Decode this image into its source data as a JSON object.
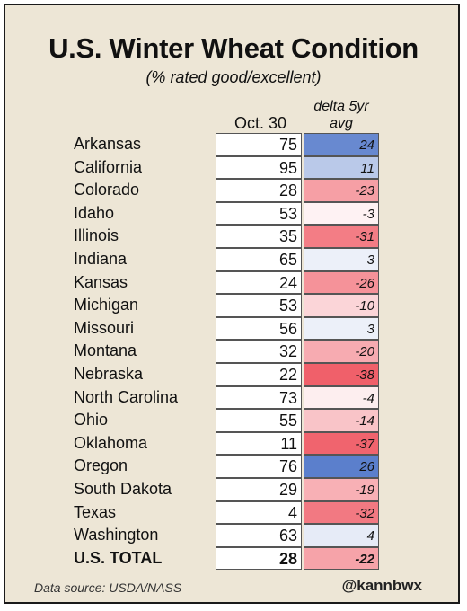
{
  "header": {
    "title": "U.S. Winter Wheat Condition",
    "subtitle": "(% rated good/excellent)",
    "col_date": "Oct. 30",
    "col_delta_line1": "delta 5yr",
    "col_delta_line2": "avg"
  },
  "chart_data": {
    "type": "table",
    "title": "U.S. Winter Wheat Condition",
    "subtitle": "(% rated good/excellent)",
    "columns": [
      "Oct. 30",
      "delta 5yr avg"
    ],
    "rows": [
      {
        "state": "Arkansas",
        "value": "75",
        "delta": "24"
      },
      {
        "state": "California",
        "value": "95",
        "delta": "11"
      },
      {
        "state": "Colorado",
        "value": "28",
        "delta": "-23"
      },
      {
        "state": "Idaho",
        "value": "53",
        "delta": "-3"
      },
      {
        "state": "Illinois",
        "value": "35",
        "delta": "-31"
      },
      {
        "state": "Indiana",
        "value": "65",
        "delta": "3"
      },
      {
        "state": "Kansas",
        "value": "24",
        "delta": "-26"
      },
      {
        "state": "Michigan",
        "value": "53",
        "delta": "-10"
      },
      {
        "state": "Missouri",
        "value": "56",
        "delta": "3"
      },
      {
        "state": "Montana",
        "value": "32",
        "delta": "-20"
      },
      {
        "state": "Nebraska",
        "value": "22",
        "delta": "-38"
      },
      {
        "state": "North Carolina",
        "value": "73",
        "delta": "-4"
      },
      {
        "state": "Ohio",
        "value": "55",
        "delta": "-14"
      },
      {
        "state": "Oklahoma",
        "value": "11",
        "delta": "-37"
      },
      {
        "state": "Oregon",
        "value": "76",
        "delta": "26"
      },
      {
        "state": "South Dakota",
        "value": "29",
        "delta": "-19"
      },
      {
        "state": "Texas",
        "value": "4",
        "delta": "-32"
      },
      {
        "state": "Washington",
        "value": "63",
        "delta": "4"
      }
    ],
    "total": {
      "state": "U.S. TOTAL",
      "value": "28",
      "delta": "-22"
    },
    "colors": {
      "positive": "#5b7fcc",
      "negative": "#f0606a",
      "neutral": "#ffffff"
    }
  },
  "footer": {
    "source": "Data source: USDA/NASS",
    "handle": "@kannbwx"
  }
}
